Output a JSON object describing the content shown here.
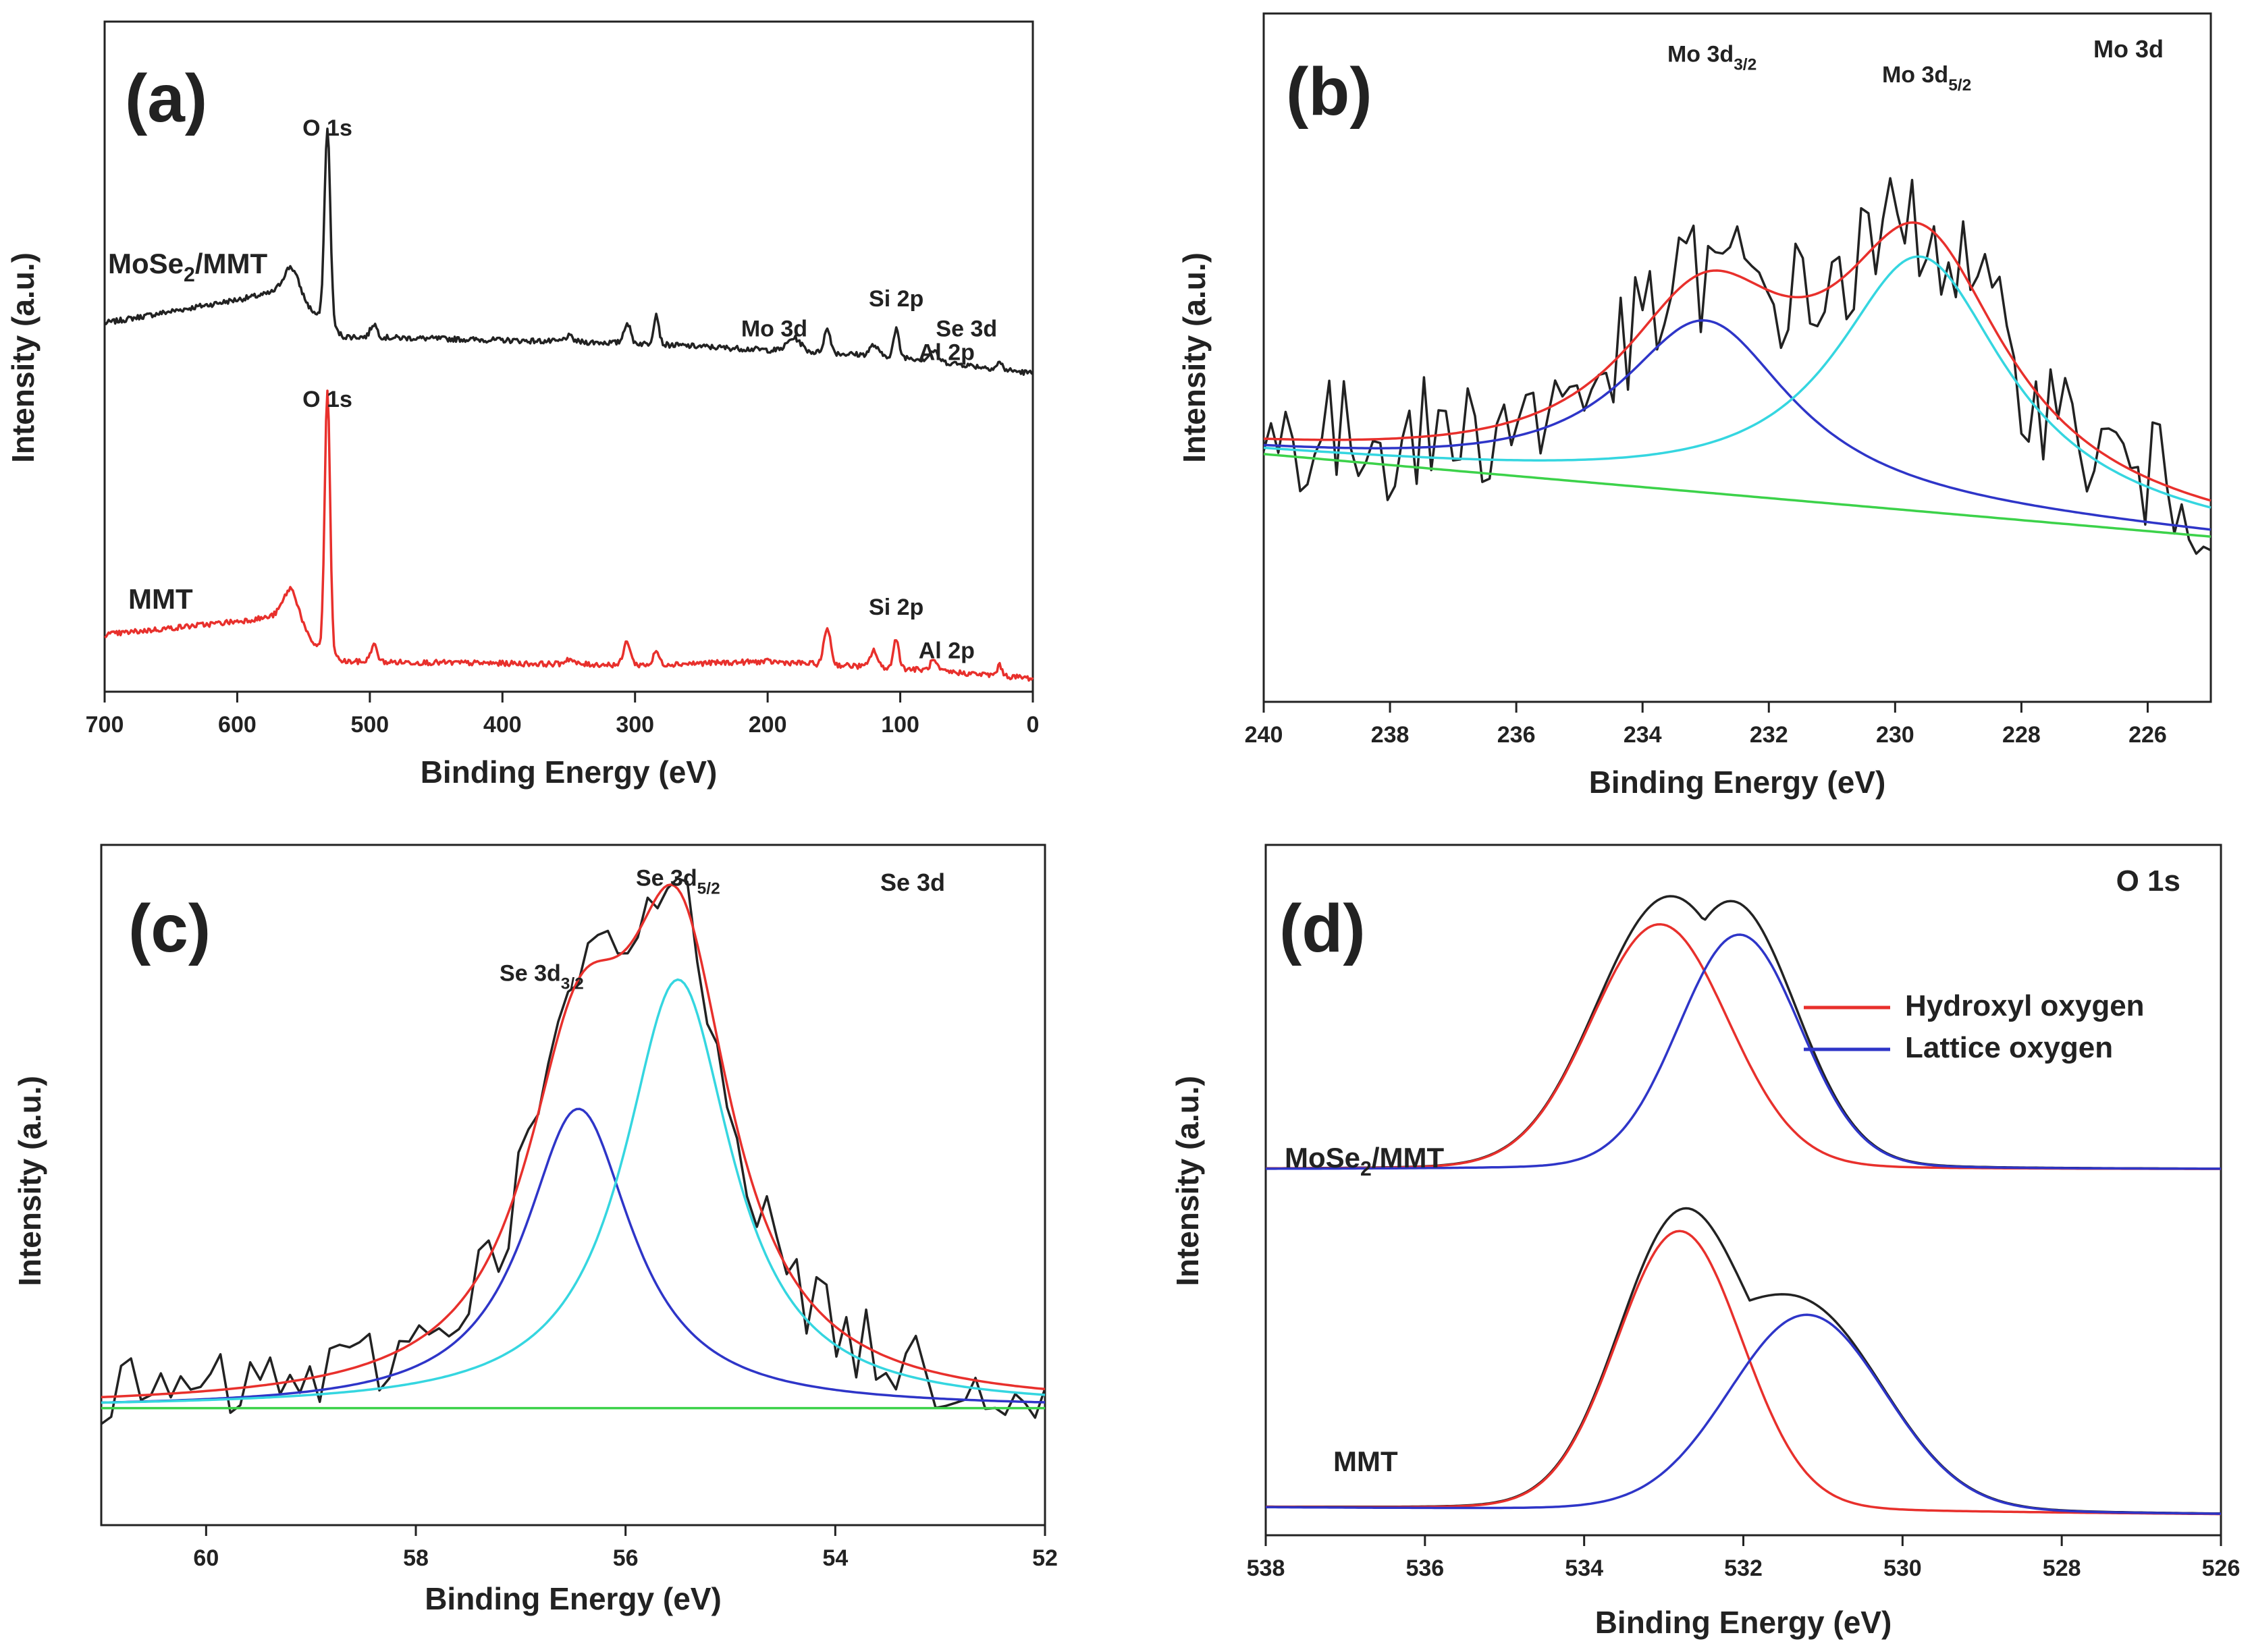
{
  "figure_colors": {
    "black": "#222222",
    "red": "#e8302c",
    "blue": "#2e35c8",
    "cyan": "#35d6e0",
    "green": "#3cd24a"
  },
  "chart_data": [
    {
      "panel": "(a)",
      "type": "line",
      "xlabel": "Binding Energy (eV)",
      "ylabel": "Intensity (a.u.)",
      "xlim": [
        700,
        0
      ],
      "ylim": [
        0,
        10
      ],
      "xticks": [
        700,
        600,
        500,
        400,
        300,
        200,
        100,
        0
      ],
      "yticks": [],
      "grid": false,
      "series": [
        {
          "name": "MoSe2/MMT",
          "label_base": "MoSe",
          "label_sub": "2",
          "label_rest": "/MMT",
          "color": "#222222",
          "baseline": [
            [
              700,
              5.5
            ],
            [
              600,
              5.85
            ],
            [
              560,
              6.0
            ],
            [
              545,
              5.7
            ],
            [
              520,
              5.3
            ],
            [
              300,
              5.2
            ],
            [
              100,
              5.0
            ],
            [
              0,
              4.75
            ]
          ],
          "peaks": [
            [
              559,
              0.35,
              6
            ],
            [
              532,
              2.9,
              2.2
            ],
            [
              497,
              0.2,
              2.5
            ],
            [
              350,
              0.08,
              3
            ],
            [
              306,
              0.3,
              2.5
            ],
            [
              284,
              0.45,
              2
            ],
            [
              180,
              0.2,
              5
            ],
            [
              155,
              0.35,
              2.5
            ],
            [
              120,
              0.15,
              3
            ],
            [
              103,
              0.4,
              2
            ],
            [
              75,
              0.15,
              3
            ],
            [
              25,
              0.1,
              2
            ]
          ]
        },
        {
          "name": "MMT",
          "label": "MMT",
          "color": "#e8302c",
          "baseline": [
            [
              700,
              0.85
            ],
            [
              600,
              1.05
            ],
            [
              560,
              1.15
            ],
            [
              545,
              0.75
            ],
            [
              520,
              0.45
            ],
            [
              300,
              0.4
            ],
            [
              200,
              0.45
            ],
            [
              100,
              0.35
            ],
            [
              0,
              0.2
            ]
          ],
          "peaks": [
            [
              559,
              0.4,
              6
            ],
            [
              532,
              3.9,
              2.0
            ],
            [
              497,
              0.25,
              2.5
            ],
            [
              350,
              0.08,
              3
            ],
            [
              306,
              0.35,
              2.5
            ],
            [
              284,
              0.2,
              2
            ],
            [
              155,
              0.55,
              2.5
            ],
            [
              120,
              0.25,
              2.5
            ],
            [
              103,
              0.45,
              2
            ],
            [
              75,
              0.15,
              2.5
            ],
            [
              25,
              0.15,
              2
            ]
          ]
        }
      ],
      "annotations": [
        {
          "text": "O 1s",
          "x": 532,
          "y": 8.3
        },
        {
          "text": "O 1s",
          "x": 532,
          "y": 4.25
        },
        {
          "text": "Mo 3d",
          "x": 195,
          "y": 5.3
        },
        {
          "text": "Si 2p",
          "x": 103,
          "y": 5.75
        },
        {
          "text": "Se 3d",
          "x": 50,
          "y": 5.3
        },
        {
          "text": "Al 2p",
          "x": 65,
          "y": 4.95
        },
        {
          "text": "Si 2p",
          "x": 103,
          "y": 1.15
        },
        {
          "text": "Al 2p",
          "x": 65,
          "y": 0.5
        }
      ]
    },
    {
      "panel": "(b)",
      "type": "line",
      "corner_label": "Mo 3d",
      "xlabel": "Binding Energy (eV)",
      "ylabel": "Intensity (a.u.)",
      "xlim": [
        240,
        225
      ],
      "ylim": [
        0,
        10
      ],
      "xticks": [
        240,
        238,
        236,
        234,
        232,
        230,
        228,
        226
      ],
      "yticks": [],
      "grid": false,
      "components": {
        "background": {
          "name": "Background",
          "start": 3.6,
          "end": 2.4,
          "color": "#3cd24a"
        },
        "peak1": {
          "name": "Mo 3d3/2",
          "center": 233.0,
          "amplitude": 2.5,
          "fwhm": 3.3,
          "color": "#2e35c8"
        },
        "peak2": {
          "name": "Mo 3d5/2",
          "center": 229.6,
          "amplitude": 3.7,
          "fwhm": 3.3,
          "color": "#35d6e0"
        },
        "envelope_color": "#e8302c",
        "raw_color": "#222222",
        "raw_noise": 0.9
      },
      "annotations": [
        {
          "base": "Mo 3d",
          "sub": "3/2",
          "x": 232.9,
          "y": 9.3
        },
        {
          "base": "Mo 3d",
          "sub": "5/2",
          "x": 229.5,
          "y": 9.0
        }
      ]
    },
    {
      "panel": "(c)",
      "type": "line",
      "corner_label": "Se 3d",
      "xlabel": "Binding Energy (eV)",
      "ylabel": "Intensity (a.u.)",
      "xlim": [
        61,
        52
      ],
      "ylim": [
        0,
        10
      ],
      "xticks": [
        60,
        58,
        56,
        54,
        52
      ],
      "yticks": [],
      "grid": false,
      "components": {
        "background": {
          "name": "Background",
          "start": 1.72,
          "end": 1.72,
          "color": "#3cd24a"
        },
        "peak1": {
          "name": "Se 3d3/2",
          "center": 56.45,
          "amplitude": 4.4,
          "fwhm": 1.25,
          "color": "#2e35c8"
        },
        "peak2": {
          "name": "Se 3d5/2",
          "center": 55.5,
          "amplitude": 6.3,
          "fwhm": 1.25,
          "color": "#35d6e0"
        },
        "envelope_color": "#e8302c",
        "raw_color": "#222222",
        "raw_noise": 0.55
      },
      "annotations": [
        {
          "base": "Se 3d",
          "sub": "5/2",
          "x": 55.5,
          "y": 9.4
        },
        {
          "base": "Se 3d",
          "sub": "3/2",
          "x": 56.8,
          "y": 8.0
        }
      ]
    },
    {
      "panel": "(d)",
      "type": "line",
      "corner_label": "O 1s",
      "xlabel": "Binding Energy (eV)",
      "ylabel": "Intensity (a.u.)",
      "xlim": [
        538,
        526
      ],
      "ylim": [
        0,
        10
      ],
      "xticks": [
        538,
        536,
        534,
        532,
        530,
        528,
        526
      ],
      "yticks": [],
      "grid": false,
      "legend": {
        "position": "top-right",
        "entries": [
          {
            "label": "Hydroxyl oxygen",
            "color": "#e8302c"
          },
          {
            "label": "Lattice oxygen",
            "color": "#2e35c8"
          }
        ]
      },
      "samples": [
        {
          "name": "MoSe2/MMT",
          "label_base": "MoSe",
          "label_sub": "2",
          "label_rest": "/MMT",
          "offset": 5.3,
          "hydroxyl": {
            "center": 533.05,
            "amplitude": 3.4,
            "fwhm": 1.75
          },
          "lattice": {
            "center": 532.05,
            "amplitude": 3.25,
            "fwhm": 1.55
          }
        },
        {
          "name": "MMT",
          "label": "MMT",
          "offset": 0.3,
          "hydroxyl": {
            "center": 532.8,
            "amplitude": 3.9,
            "fwhm": 1.6
          },
          "lattice": {
            "center": 531.2,
            "amplitude": 2.7,
            "fwhm": 2.0
          }
        }
      ]
    }
  ]
}
